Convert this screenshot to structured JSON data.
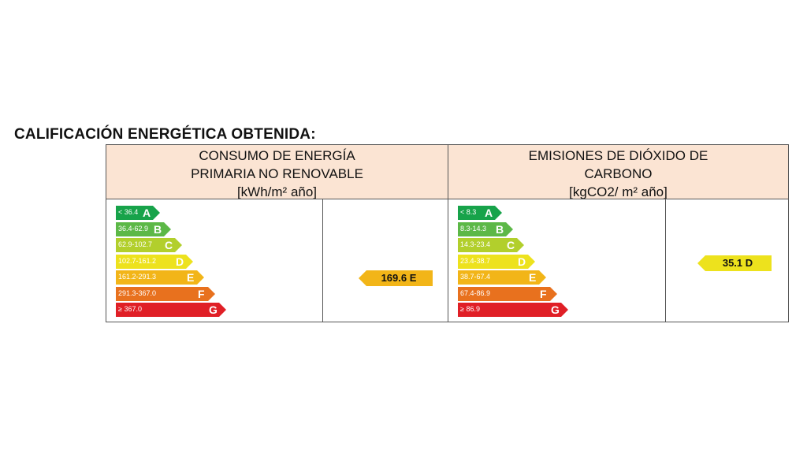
{
  "title": "CALIFICACIÓN ENERGÉTICA OBTENIDA:",
  "energy": {
    "header": [
      "CONSUMO DE ENERGÍA",
      "PRIMARIA NO RENOVABLE",
      "[kWh/m² año]"
    ],
    "scale": [
      {
        "range": "< 36.4",
        "letter": "A"
      },
      {
        "range": "36.4-62.9",
        "letter": "B"
      },
      {
        "range": "62.9-102.7",
        "letter": "C"
      },
      {
        "range": "102.7-161.2",
        "letter": "D"
      },
      {
        "range": "161.2-291.3",
        "letter": "E"
      },
      {
        "range": "291.3-367.0",
        "letter": "F"
      },
      {
        "range": "≥ 367.0",
        "letter": "G"
      }
    ],
    "result": "169.6 E",
    "result_color": "#f2b518"
  },
  "emissions": {
    "header": [
      "EMISIONES DE DIÓXIDO DE",
      "CARBONO",
      "[kgCO2/ m² año]"
    ],
    "scale": [
      {
        "range": "< 8.3",
        "letter": "A"
      },
      {
        "range": "8.3-14.3",
        "letter": "B"
      },
      {
        "range": "14.3-23.4",
        "letter": "C"
      },
      {
        "range": "23.4-38.7",
        "letter": "D"
      },
      {
        "range": "38.7-67.4",
        "letter": "E"
      },
      {
        "range": "67.4-86.9",
        "letter": "F"
      },
      {
        "range": "≥ 86.9",
        "letter": "G"
      }
    ],
    "result": "35.1 D",
    "result_color": "#ede21d"
  },
  "class_colors": [
    "#17a34a",
    "#5cb847",
    "#b2cf2c",
    "#ede21d",
    "#f2b518",
    "#e8711e",
    "#e01f26"
  ]
}
